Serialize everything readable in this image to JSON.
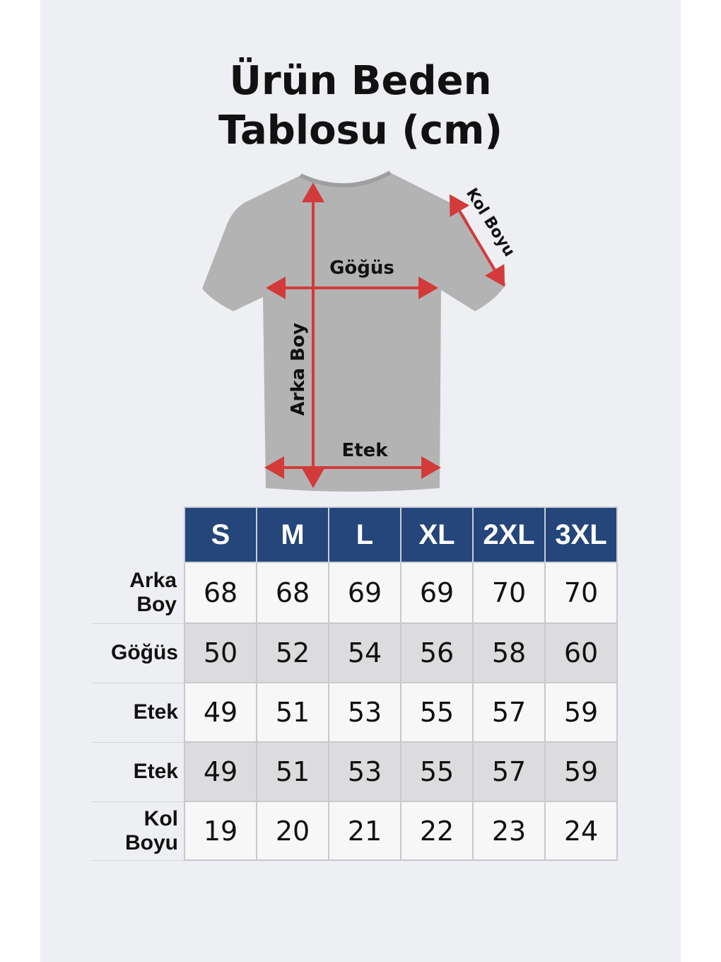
{
  "title": {
    "line1": "Ürün Beden",
    "line2": "Tablosu (cm)"
  },
  "diagram": {
    "labels": {
      "chest": "Göğüs",
      "back_length": "Arka Boy",
      "hem": "Etek",
      "sleeve": "Kol Boyu"
    },
    "shirt_color": "#b3b3b3",
    "arrow_color": "#d33a3a"
  },
  "table": {
    "header_color": "#24467a",
    "sizes": [
      "S",
      "M",
      "L",
      "XL",
      "2XL",
      "3XL"
    ],
    "rows": [
      {
        "label": "Arka Boy",
        "values": [
          "68",
          "68",
          "69",
          "69",
          "70",
          "70"
        ]
      },
      {
        "label": "Göğüs",
        "values": [
          "50",
          "52",
          "54",
          "56",
          "58",
          "60"
        ]
      },
      {
        "label": "Etek",
        "values": [
          "49",
          "51",
          "53",
          "55",
          "57",
          "59"
        ]
      },
      {
        "label": "Etek",
        "values": [
          "49",
          "51",
          "53",
          "55",
          "57",
          "59"
        ]
      },
      {
        "label": "Kol Boyu",
        "values": [
          "19",
          "20",
          "21",
          "22",
          "23",
          "24"
        ]
      }
    ]
  }
}
